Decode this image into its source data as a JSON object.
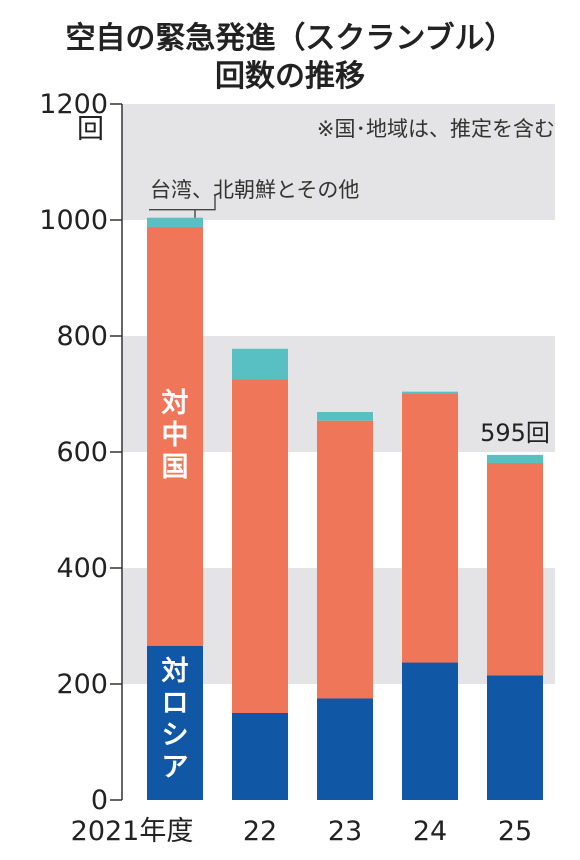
{
  "title_lines": [
    "空自の緊急発進（スクランブル）",
    "回数の推移"
  ],
  "chart_data": {
    "type": "bar",
    "stacked": true,
    "categories": [
      "2021年度",
      "22",
      "23",
      "24",
      "25"
    ],
    "series": [
      {
        "name": "対ロシア",
        "color": "#1057a6",
        "values": [
          266,
          150,
          175,
          237,
          215
        ]
      },
      {
        "name": "対中国",
        "color": "#f07659",
        "values": [
          722,
          575,
          479,
          464,
          366
        ]
      },
      {
        "name": "台湾、北朝鮮とその他",
        "color": "#58c0c2",
        "values": [
          16,
          53,
          15,
          3,
          14
        ]
      }
    ],
    "ylim": [
      0,
      1200
    ],
    "yticks": [
      0,
      200,
      400,
      600,
      800,
      1000,
      1200
    ],
    "y_unit": "回",
    "grid_bands": true,
    "annotations": {
      "note": "※国･地域は、推定を含む",
      "last_total_label": "595回"
    }
  },
  "colors": {
    "band": "#e4e4e6",
    "axis": "#333333"
  }
}
